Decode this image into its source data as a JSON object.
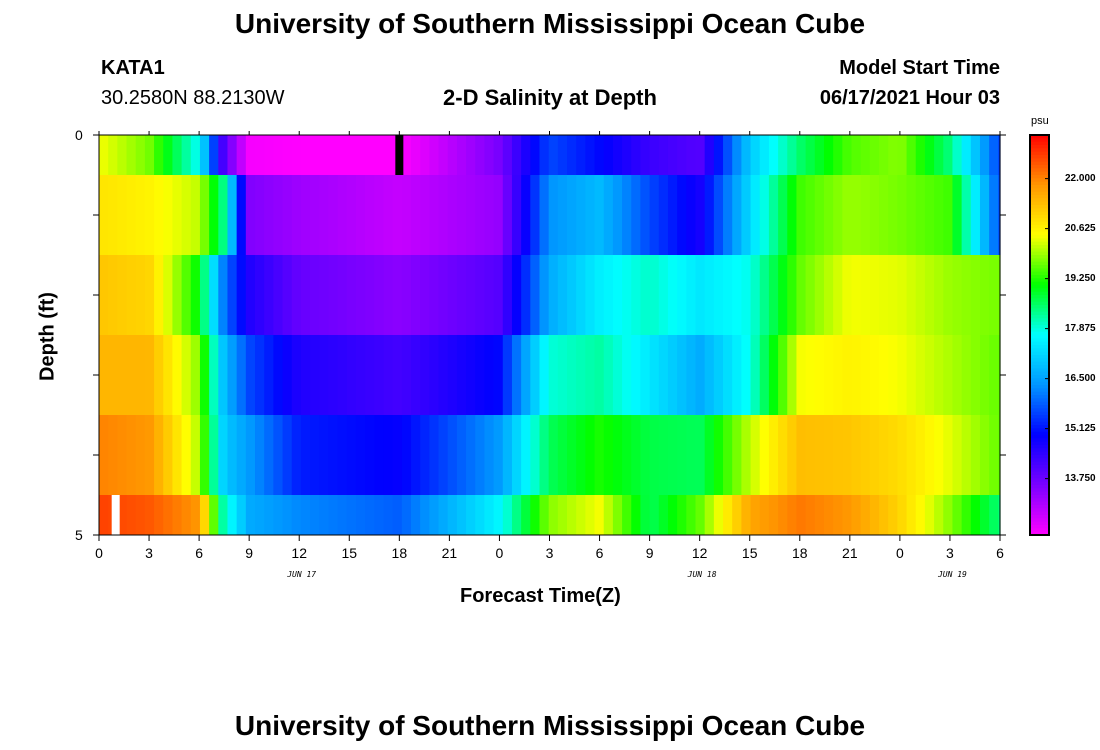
{
  "page": {
    "title_top": "University of Southern Mississippi Ocean Cube",
    "title_bottom": "University of Southern Mississippi Ocean Cube",
    "station_name": "KATA1",
    "station_coords": "30.2580N  88.2130W",
    "plot_title": "2-D Salinity at Depth",
    "model_start_label": "Model Start Time",
    "model_start_value": "06/17/2021 Hour 03"
  },
  "chart_data": {
    "type": "heatmap",
    "title": "2-D Salinity at Depth",
    "xlabel": "Forecast Time(Z)",
    "ylabel": "Depth (ft)",
    "x_tick_labels": [
      "0",
      "3",
      "6",
      "9",
      "12",
      "15",
      "18",
      "21",
      "0",
      "3",
      "6",
      "9",
      "12",
      "15",
      "18",
      "21",
      "0",
      "3",
      "6"
    ],
    "x_hours": [
      0,
      3,
      6,
      9,
      12,
      15,
      18,
      21,
      24,
      27,
      30,
      33,
      36,
      39,
      42,
      45,
      48,
      51,
      54
    ],
    "xlim": [
      0,
      54
    ],
    "date_labels": [
      {
        "text": "JUN 17",
        "hour": 12
      },
      {
        "text": "JUN 18",
        "hour": 36
      },
      {
        "text": "JUN 19",
        "hour": 51
      }
    ],
    "y_tick_labels": [
      "0",
      "5"
    ],
    "ylim": [
      0,
      5
    ],
    "colorbar": {
      "unit": "psu",
      "ticks": [
        "22.000",
        "20.625",
        "19.250",
        "17.875",
        "16.500",
        "15.125",
        "13.750"
      ],
      "tick_values": [
        22.0,
        20.625,
        19.25,
        17.875,
        16.5,
        15.125,
        13.75
      ],
      "range": [
        12.2,
        23.2
      ],
      "colors": [
        "#ff00ff",
        "#7a00ff",
        "#0000ff",
        "#0096ff",
        "#00ffff",
        "#00ff00",
        "#ffff00",
        "#ff9600",
        "#ff0000"
      ]
    },
    "depth_layers": [
      {
        "depth_range": [
          0,
          0.5
        ],
        "key_hours": [
          0,
          3,
          6,
          7.5,
          9,
          12,
          18,
          24,
          27,
          30,
          33,
          36,
          39,
          42,
          45,
          48,
          51,
          54
        ],
        "salinity": [
          20.4,
          19.7,
          17.7,
          14.0,
          12.3,
          12.2,
          12.2,
          13.6,
          15.6,
          15.0,
          14.3,
          14.0,
          17.0,
          18.5,
          19.5,
          19.8,
          18.4,
          15.5
        ]
      },
      {
        "depth_range": [
          0.5,
          1.5
        ],
        "key_hours": [
          0,
          3,
          6,
          7.5,
          9,
          12,
          18,
          24,
          27,
          30,
          33,
          36,
          39,
          42,
          45,
          48,
          51,
          54
        ],
        "salinity": [
          20.8,
          20.6,
          20.1,
          18.3,
          13.5,
          13.2,
          12.8,
          13.3,
          16.3,
          16.8,
          15.6,
          14.7,
          17.2,
          19.4,
          19.9,
          19.7,
          19.4,
          15.6
        ]
      },
      {
        "depth_range": [
          1.5,
          2.5
        ],
        "key_hours": [
          0,
          3,
          6,
          7.5,
          9,
          12,
          18,
          24,
          27,
          30,
          33,
          36,
          39,
          42,
          45,
          48,
          51,
          54
        ],
        "salinity": [
          21.2,
          21.0,
          19.0,
          16.0,
          14.6,
          13.8,
          13.4,
          14.0,
          16.6,
          17.5,
          18.0,
          17.4,
          17.8,
          19.6,
          20.4,
          20.3,
          19.9,
          19.7
        ]
      },
      {
        "depth_range": [
          2.5,
          3.5
        ],
        "key_hours": [
          0,
          3,
          6,
          7.5,
          9,
          12,
          18,
          24,
          27,
          30,
          33,
          36,
          39,
          42,
          45,
          48,
          51,
          54
        ],
        "salinity": [
          21.4,
          21.4,
          19.8,
          16.8,
          15.6,
          14.6,
          14.2,
          15.0,
          17.9,
          18.2,
          17.4,
          16.6,
          17.8,
          20.4,
          20.6,
          20.4,
          20.0,
          19.6
        ]
      },
      {
        "depth_range": [
          3.5,
          4.5
        ],
        "key_hours": [
          0,
          3,
          6,
          7.5,
          9,
          12,
          18,
          24,
          27,
          30,
          33,
          36,
          39,
          42,
          45,
          48,
          51,
          54
        ],
        "salinity": [
          22.0,
          21.8,
          20.0,
          17.0,
          16.4,
          15.2,
          14.9,
          16.4,
          18.6,
          19.2,
          18.7,
          18.6,
          20.1,
          21.3,
          21.2,
          20.9,
          20.3,
          19.6
        ]
      },
      {
        "depth_range": [
          4.5,
          5
        ],
        "key_hours": [
          0,
          3,
          6,
          7.5,
          9,
          12,
          18,
          24,
          27,
          30,
          33,
          36,
          39,
          42,
          45,
          48,
          51,
          54
        ],
        "salinity": [
          22.6,
          22.4,
          21.8,
          18.0,
          16.6,
          16.2,
          15.8,
          17.6,
          19.8,
          20.4,
          18.6,
          19.6,
          21.6,
          22.1,
          21.8,
          21.0,
          19.8,
          18.4
        ]
      }
    ],
    "markers": [
      {
        "type": "current-time",
        "color": "#000000",
        "hour": 18,
        "depth_range": [
          0,
          0.5
        ]
      },
      {
        "type": "start-marker",
        "color": "#ffffff",
        "hour": 1,
        "depth_range": [
          4.5,
          5
        ]
      }
    ]
  }
}
